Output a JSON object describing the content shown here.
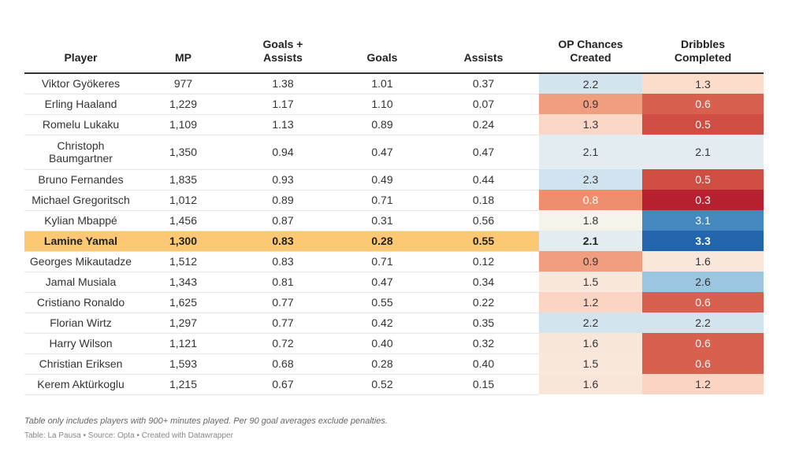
{
  "chart_data": {
    "type": "table",
    "columns": [
      "Player",
      "MP",
      "Goals +\nAssists",
      "Goals",
      "Assists",
      "OP Chances\nCreated",
      "Dribbles\nCompleted"
    ],
    "highlight_player": "Lamine Yamal",
    "rows": [
      {
        "player": "Viktor Gyökeres",
        "mp": "977",
        "ga": "1.38",
        "goals": "1.01",
        "assists": "0.37",
        "op": "2.2",
        "drib": "1.3"
      },
      {
        "player": "Erling Haaland",
        "mp": "1,229",
        "ga": "1.17",
        "goals": "1.10",
        "assists": "0.07",
        "op": "0.9",
        "drib": "0.6"
      },
      {
        "player": "Romelu Lukaku",
        "mp": "1,109",
        "ga": "1.13",
        "goals": "0.89",
        "assists": "0.24",
        "op": "1.3",
        "drib": "0.5"
      },
      {
        "player": "Christoph Baumgartner",
        "mp": "1,350",
        "ga": "0.94",
        "goals": "0.47",
        "assists": "0.47",
        "op": "2.1",
        "drib": "2.1"
      },
      {
        "player": "Bruno Fernandes",
        "mp": "1,835",
        "ga": "0.93",
        "goals": "0.49",
        "assists": "0.44",
        "op": "2.3",
        "drib": "0.5"
      },
      {
        "player": "Michael Gregoritsch",
        "mp": "1,012",
        "ga": "0.89",
        "goals": "0.71",
        "assists": "0.18",
        "op": "0.8",
        "drib": "0.3"
      },
      {
        "player": "Kylian Mbappé",
        "mp": "1,456",
        "ga": "0.87",
        "goals": "0.31",
        "assists": "0.56",
        "op": "1.8",
        "drib": "3.1"
      },
      {
        "player": "Lamine Yamal",
        "mp": "1,300",
        "ga": "0.83",
        "goals": "0.28",
        "assists": "0.55",
        "op": "2.1",
        "drib": "3.3"
      },
      {
        "player": "Georges Mikautadze",
        "mp": "1,512",
        "ga": "0.83",
        "goals": "0.71",
        "assists": "0.12",
        "op": "0.9",
        "drib": "1.6"
      },
      {
        "player": "Jamal Musiala",
        "mp": "1,343",
        "ga": "0.81",
        "goals": "0.47",
        "assists": "0.34",
        "op": "1.5",
        "drib": "2.6"
      },
      {
        "player": "Cristiano Ronaldo",
        "mp": "1,625",
        "ga": "0.77",
        "goals": "0.55",
        "assists": "0.22",
        "op": "1.2",
        "drib": "0.6"
      },
      {
        "player": "Florian Wirtz",
        "mp": "1,297",
        "ga": "0.77",
        "goals": "0.42",
        "assists": "0.35",
        "op": "2.2",
        "drib": "2.2"
      },
      {
        "player": "Harry Wilson",
        "mp": "1,121",
        "ga": "0.72",
        "goals": "0.40",
        "assists": "0.32",
        "op": "1.6",
        "drib": "0.6"
      },
      {
        "player": "Christian Eriksen",
        "mp": "1,593",
        "ga": "0.68",
        "goals": "0.28",
        "assists": "0.40",
        "op": "1.5",
        "drib": "0.6"
      },
      {
        "player": "Kerem Aktürkoglu",
        "mp": "1,215",
        "ga": "0.67",
        "goals": "0.52",
        "assists": "0.15",
        "op": "1.6",
        "drib": "1.2"
      }
    ],
    "heat_colors": {
      "op": [
        "#d3e4ee",
        "#f19d7f",
        "#fbd7c7",
        "#e3ecf0",
        "#d1e3ee",
        "#ef8e6e",
        "#f6f4ea",
        "#e3ecf0",
        "#f19d7f",
        "#fbe8dc",
        "#fbd4c3",
        "#d3e4ee",
        "#f9e6da",
        "#fbe8dc",
        "#f9e6da"
      ],
      "drib": [
        "#fcdcca",
        "#d8604e",
        "#cf4d43",
        "#e3ecf0",
        "#cf4d43",
        "#b6202f",
        "#4389c0",
        "#2265ac",
        "#fae7dc",
        "#9cc6df",
        "#d8604e",
        "#d3e4ee",
        "#d8604e",
        "#d8604e",
        "#fbd4c3"
      ]
    },
    "notes": "Table only includes players with 900+ minutes played. Per 90 goal averages exclude penalties.",
    "credits": "Table: La Pausa • Source: Opta • Created with Datawrapper"
  }
}
